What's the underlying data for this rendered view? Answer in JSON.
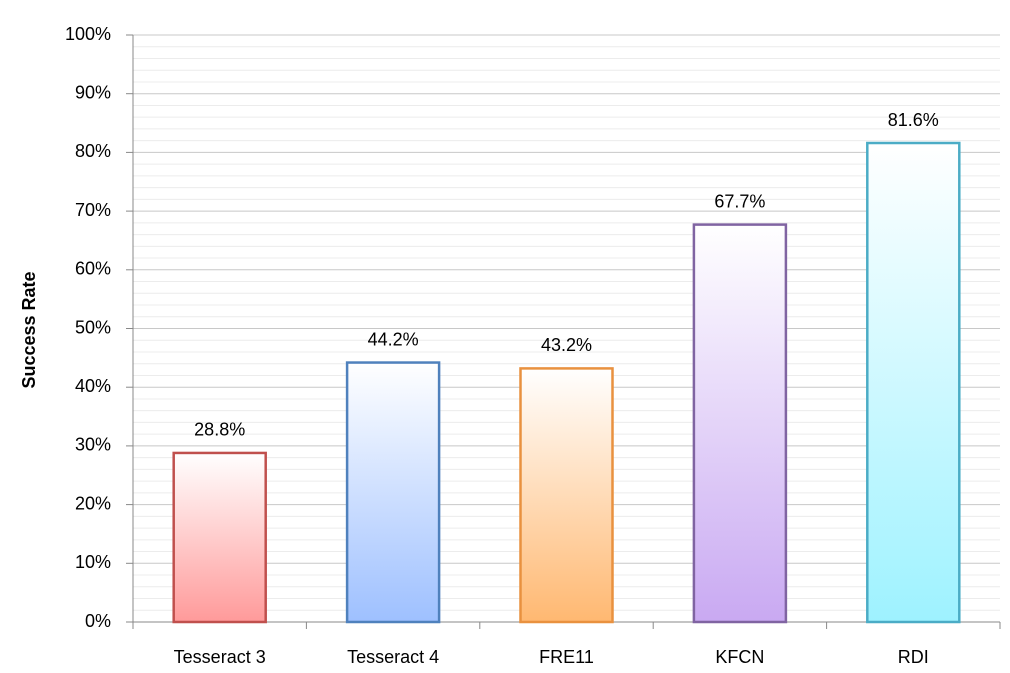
{
  "chart_data": {
    "type": "bar",
    "y_label": "Success Rate",
    "categories": [
      "Tesseract 3",
      "Tesseract 4",
      "FRE11",
      "KFCN",
      "RDI"
    ],
    "values": [
      28.8,
      44.2,
      43.2,
      67.7,
      81.6
    ],
    "value_labels": [
      "28.8%",
      "44.2%",
      "43.2%",
      "67.7%",
      "81.6%"
    ],
    "colors": [
      "#ff9a9a",
      "#9ec0ff",
      "#ffb871",
      "#c9a9f2",
      "#9ef2ff"
    ],
    "edge_colors": [
      "#c0504d",
      "#4f81bd",
      "#e9913f",
      "#8064a2",
      "#4bacc6"
    ],
    "ylim": [
      0,
      100
    ],
    "yticks": [
      {
        "value": 0,
        "label": "0%"
      },
      {
        "value": 10,
        "label": "10%"
      },
      {
        "value": 20,
        "label": "20%"
      },
      {
        "value": 30,
        "label": "30%"
      },
      {
        "value": 40,
        "label": "40%"
      },
      {
        "value": 50,
        "label": "50%"
      },
      {
        "value": 60,
        "label": "60%"
      },
      {
        "value": 70,
        "label": "70%"
      },
      {
        "value": 80,
        "label": "80%"
      },
      {
        "value": 90,
        "label": "90%"
      },
      {
        "value": 100,
        "label": "100%"
      }
    ],
    "yminorticks": [
      2,
      4,
      6,
      8,
      12,
      14,
      16,
      18,
      22,
      24,
      26,
      28,
      32,
      34,
      36,
      38,
      42,
      44,
      46,
      48,
      52,
      54,
      56,
      58,
      62,
      64,
      66,
      68,
      72,
      74,
      76,
      78,
      82,
      84,
      86,
      88,
      92,
      94,
      96,
      98
    ],
    "grid": true
  }
}
